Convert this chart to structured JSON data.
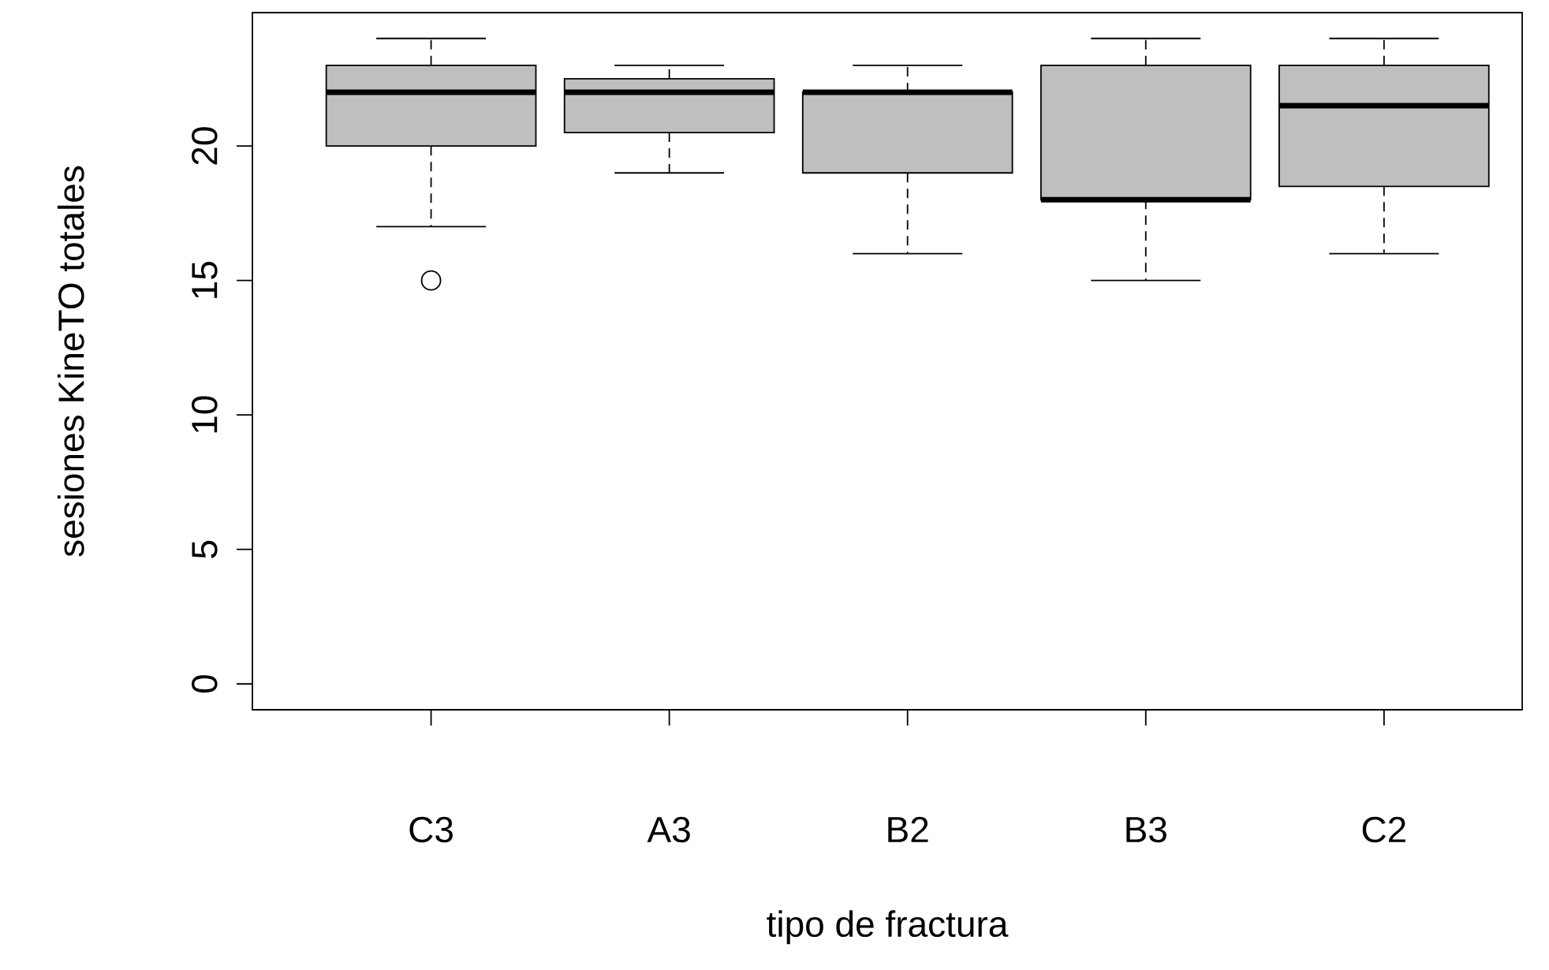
{
  "chart_data": {
    "type": "box",
    "xlabel": "tipo de fractura",
    "ylabel": "sesiones KineTO totales",
    "categories": [
      "C3",
      "A3",
      "B2",
      "B3",
      "C2"
    ],
    "boxes": [
      {
        "low": 17,
        "q1": 20,
        "median": 22,
        "q3": 23,
        "high": 24,
        "outliers": [
          15
        ]
      },
      {
        "low": 19,
        "q1": 20.5,
        "median": 22,
        "q3": 22.5,
        "high": 23
      },
      {
        "low": 16,
        "q1": 19,
        "median": 22,
        "q3": 22,
        "high": 23
      },
      {
        "low": 15,
        "q1": 18,
        "median": 18,
        "q3": 23,
        "high": 24
      },
      {
        "low": 16,
        "q1": 18.5,
        "median": 21.5,
        "q3": 23,
        "high": 24
      }
    ],
    "ylim": [
      -0.96,
      24.96
    ],
    "yticks": [
      0,
      5,
      10,
      15,
      20
    ]
  }
}
